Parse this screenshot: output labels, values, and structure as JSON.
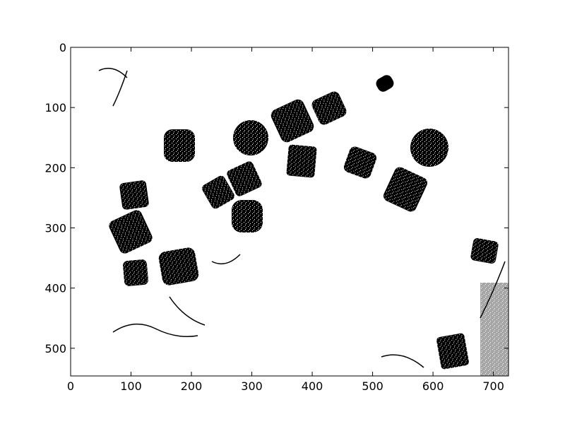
{
  "chart_data": {
    "type": "image",
    "xlim": [
      0,
      725
    ],
    "ylim": [
      546,
      0
    ],
    "xticks": [
      0,
      100,
      200,
      300,
      400,
      500,
      600,
      700
    ],
    "yticks": [
      0,
      100,
      200,
      300,
      400,
      500
    ]
  }
}
